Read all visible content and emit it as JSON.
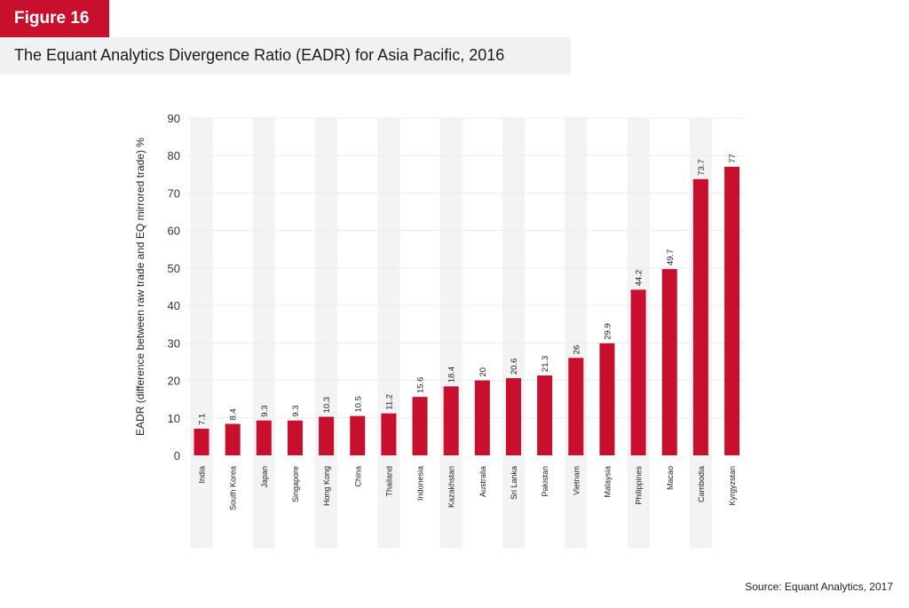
{
  "figure_label": "Figure 16",
  "title": "The Equant Analytics Divergence Ratio (EADR) for Asia Pacific, 2016",
  "source": "Source: Equant Analytics, 2017",
  "colors": {
    "bar": "#c8102e",
    "band": "#f3f3f6",
    "grid": "#ececf0",
    "badge": "#c8102e"
  },
  "chart_data": {
    "type": "bar",
    "title": "The Equant Analytics Divergence Ratio (EADR) for Asia Pacific, 2016",
    "xlabel": "",
    "ylabel": "EADR (difference between raw trade and EQ mirrored trade) %",
    "ylim": [
      0,
      90
    ],
    "yticks": [
      0,
      10,
      20,
      30,
      40,
      50,
      60,
      70,
      80,
      90
    ],
    "grid": true,
    "categories": [
      "India",
      "South Korea",
      "Japan",
      "Singapore",
      "Hong Kong",
      "China",
      "Thailand",
      "Indonesia",
      "Kazakhstan",
      "Australia",
      "Sri Lanka",
      "Pakistan",
      "Vietnam",
      "Malaysia",
      "Philippines",
      "Macao",
      "Cambodia",
      "Kyrgyzstan"
    ],
    "values": [
      7.1,
      8.4,
      9.3,
      9.3,
      10.3,
      10.5,
      11.2,
      15.6,
      18.4,
      20,
      20.6,
      21.3,
      26,
      29.9,
      44.2,
      49.7,
      73.7,
      77
    ],
    "value_labels": [
      "7.1",
      "8.4",
      "9.3",
      "9.3",
      "10.3",
      "10.5",
      "11.2",
      "15.6",
      "18.4",
      "20",
      "20.6",
      "21.3",
      "26",
      "29.9",
      "44.2",
      "49.7",
      "73.7",
      "77"
    ]
  }
}
